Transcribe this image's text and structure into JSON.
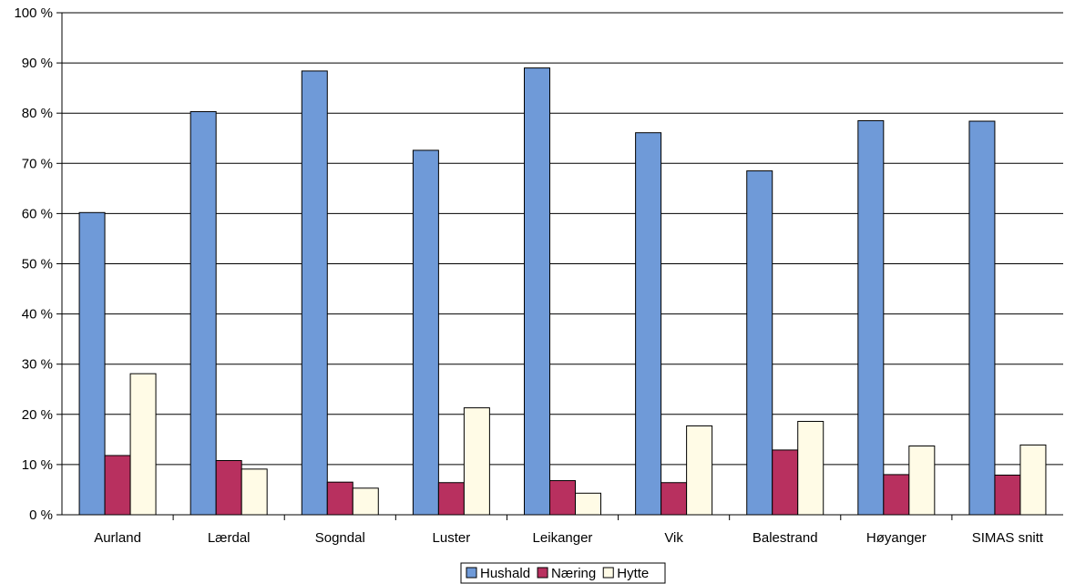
{
  "chart_data": {
    "type": "bar",
    "title": "",
    "xlabel": "",
    "ylabel": "",
    "categories": [
      "Aurland",
      "Lærdal",
      "Sogndal",
      "Luster",
      "Leikanger",
      "Vik",
      "Balestrand",
      "Høyanger",
      "SIMAS snitt"
    ],
    "series": [
      {
        "name": "Hushald",
        "color": "#6f9ad8",
        "values": [
          60.2,
          80.3,
          88.4,
          72.6,
          89.0,
          76.1,
          68.5,
          78.5,
          78.4
        ]
      },
      {
        "name": "Næring",
        "color": "#b8305f",
        "values": [
          11.8,
          10.8,
          6.5,
          6.4,
          6.8,
          6.4,
          12.9,
          8.0,
          7.9
        ]
      },
      {
        "name": "Hytte",
        "color": "#fffbe6",
        "values": [
          28.1,
          9.1,
          5.3,
          21.3,
          4.3,
          17.7,
          18.6,
          13.7,
          13.9
        ]
      }
    ],
    "ylim": [
      0,
      100
    ],
    "yticks": [
      0,
      10,
      20,
      30,
      40,
      50,
      60,
      70,
      80,
      90,
      100
    ],
    "ytick_labels": [
      "0 %",
      "10 %",
      "20 %",
      "30 %",
      "40 %",
      "50 %",
      "60 %",
      "70 %",
      "80 %",
      "90 %",
      "100 %"
    ],
    "grid": true,
    "legend": "bottom-center"
  }
}
